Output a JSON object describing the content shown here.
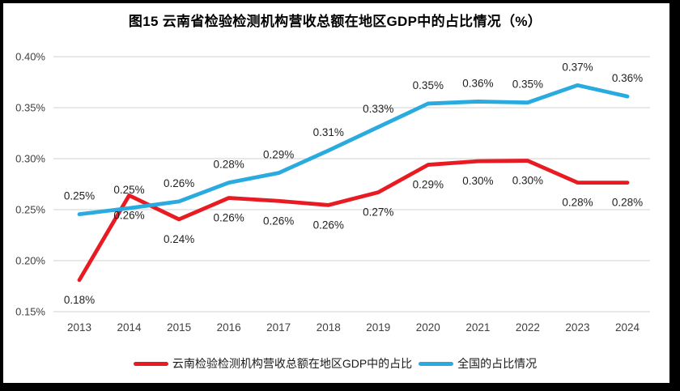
{
  "chart_data": {
    "type": "line",
    "title": "图15 云南省检验检测机构营收总额在地区GDP中的占比情况（%）",
    "categories": [
      "2013",
      "2014",
      "2015",
      "2016",
      "2017",
      "2018",
      "2019",
      "2020",
      "2021",
      "2022",
      "2023",
      "2024"
    ],
    "series": [
      {
        "name": "云南检验检测机构营收总额在地区GDP中的占比",
        "color": "#e81b23",
        "values": [
          0.18,
          0.26,
          0.24,
          0.26,
          0.26,
          0.26,
          0.27,
          0.29,
          0.3,
          0.3,
          0.28,
          0.28
        ],
        "labels": [
          "0.18%",
          "0.26%",
          "0.24%",
          "0.26%",
          "0.26%",
          "0.26%",
          "0.27%",
          "0.29%",
          "0.30%",
          "0.30%",
          "0.28%",
          "0.28%"
        ],
        "plotted_values": [
          0.181,
          0.264,
          0.2405,
          0.2615,
          0.2585,
          0.2545,
          0.267,
          0.294,
          0.2975,
          0.298,
          0.2765,
          0.2765
        ],
        "label_position": "below"
      },
      {
        "name": "全国的占比情况",
        "color": "#2aabe0",
        "values": [
          0.25,
          0.25,
          0.26,
          0.28,
          0.29,
          0.31,
          0.33,
          0.35,
          0.36,
          0.35,
          0.37,
          0.36
        ],
        "labels": [
          "0.25%",
          "0.25%",
          "0.26%",
          "0.28%",
          "0.29%",
          "0.31%",
          "0.33%",
          "0.35%",
          "0.36%",
          "0.35%",
          "0.37%",
          "0.36%"
        ],
        "plotted_values": [
          0.2455,
          0.2515,
          0.258,
          0.2765,
          0.286,
          0.308,
          0.331,
          0.354,
          0.356,
          0.355,
          0.372,
          0.361
        ],
        "label_position": "above"
      }
    ],
    "y_axis": {
      "min": 0.15,
      "max": 0.4,
      "ticks": [
        0.4,
        0.35,
        0.3,
        0.25,
        0.2,
        0.15
      ],
      "tick_labels": [
        "0.40%",
        "0.35%",
        "0.30%",
        "0.25%",
        "0.20%",
        "0.15%"
      ],
      "grid": true
    },
    "legend_position": "bottom",
    "colors": {
      "grid": "#d9d9d9",
      "axis_text": "#404040",
      "data_label_text": "#1f1f1f",
      "frame_border": "#000000",
      "background": "#ffffff"
    }
  }
}
